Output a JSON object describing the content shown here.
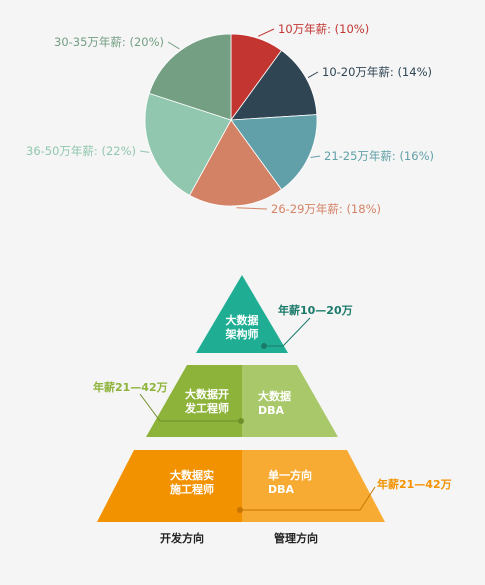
{
  "chart_data": [
    {
      "type": "pie",
      "title": "",
      "series": [
        {
          "label": "10万年薪: (10%)",
          "value": 10,
          "color": "#c23531"
        },
        {
          "label": "10-20万年薪: (14%)",
          "value": 14,
          "color": "#2f4554"
        },
        {
          "label": "21-25万年薪: (16%)",
          "value": 16,
          "color": "#61a0a8"
        },
        {
          "label": "26-29万年薪: (18%)",
          "value": 18,
          "color": "#d48265"
        },
        {
          "label": "36-50万年薪: (22%)",
          "value": 22,
          "color": "#91c7ae"
        },
        {
          "label": "30-35万年薪: (20%)",
          "value": 20,
          "color": "#749f83"
        }
      ]
    }
  ],
  "pyramid": {
    "top": {
      "line1": "大数据",
      "line2": "架构师",
      "salary": "年薪10—20万",
      "color": "#1fae94",
      "salary_color": "#1a7a6a"
    },
    "middle_left": {
      "line1": "大数据开",
      "line2": "发工程师",
      "color": "#8db33a"
    },
    "middle_right": {
      "line1": "大数据",
      "line2": "DBA",
      "color": "#a9c86a"
    },
    "middle_salary": {
      "text": "年薪21—42万",
      "color": "#8db33a"
    },
    "bottom_left": {
      "line1": "大数据实",
      "line2": "施工程师",
      "color": "#f39200"
    },
    "bottom_right": {
      "line1": "单一方向",
      "line2": "DBA",
      "color": "#f7ab33"
    },
    "bottom_salary": {
      "text": "年薪21—42万",
      "color": "#f39200"
    },
    "axis_left": "开发方向",
    "axis_right": "管理方向"
  }
}
